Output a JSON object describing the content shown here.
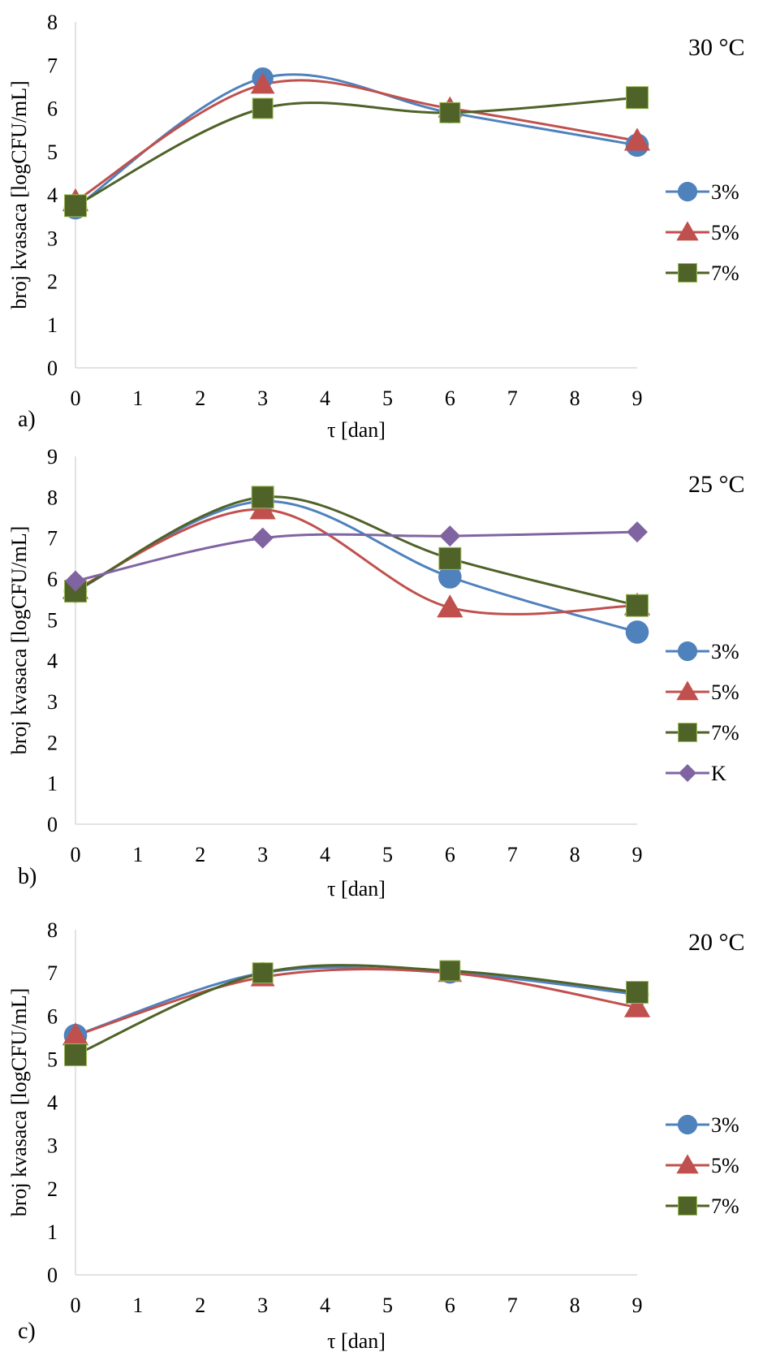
{
  "chart_data": [
    {
      "type": "line",
      "panel_label": "a)",
      "annotation": "30 °C",
      "xlabel": "τ [dan]",
      "ylabel": "broj kvasaca [logCFU/mL]",
      "xlim": [
        0,
        9
      ],
      "ylim": [
        0,
        8
      ],
      "x_ticks": [
        "0",
        "1",
        "2",
        "3",
        "4",
        "5",
        "6",
        "7",
        "8",
        "9"
      ],
      "y_ticks": [
        "0",
        "1",
        "2",
        "3",
        "4",
        "5",
        "6",
        "7",
        "8"
      ],
      "grid": false,
      "legend": "right",
      "series": [
        {
          "name": "3%",
          "marker": "circle",
          "color": "#4F81BD",
          "x": [
            0,
            3,
            6,
            9
          ],
          "y": [
            3.7,
            6.7,
            5.9,
            5.15
          ]
        },
        {
          "name": "5%",
          "marker": "triangle",
          "color": "#C0504D",
          "x": [
            0,
            3,
            6,
            9
          ],
          "y": [
            3.85,
            6.55,
            6.0,
            5.25
          ]
        },
        {
          "name": "7%",
          "marker": "square",
          "color": "#4F6228",
          "x": [
            0,
            3,
            6,
            9
          ],
          "y": [
            3.75,
            6.0,
            5.9,
            6.25
          ]
        }
      ]
    },
    {
      "type": "line",
      "panel_label": "b)",
      "annotation": "25 °C",
      "xlabel": "τ [dan]",
      "ylabel": "broj kvasaca [logCFU/mL]",
      "xlim": [
        0,
        9
      ],
      "ylim": [
        0,
        9
      ],
      "x_ticks": [
        "0",
        "1",
        "2",
        "3",
        "4",
        "5",
        "6",
        "7",
        "8",
        "9"
      ],
      "y_ticks": [
        "0",
        "1",
        "2",
        "3",
        "4",
        "5",
        "6",
        "7",
        "8",
        "9"
      ],
      "grid": false,
      "legend": "right",
      "series": [
        {
          "name": "3%",
          "marker": "circle",
          "color": "#4F81BD",
          "x": [
            0,
            3,
            6,
            9
          ],
          "y": [
            5.7,
            7.9,
            6.05,
            4.7
          ]
        },
        {
          "name": "5%",
          "marker": "triangle",
          "color": "#C0504D",
          "x": [
            0,
            3,
            6,
            9
          ],
          "y": [
            5.75,
            7.7,
            5.3,
            5.35
          ]
        },
        {
          "name": "7%",
          "marker": "square",
          "color": "#4F6228",
          "x": [
            0,
            3,
            6,
            9
          ],
          "y": [
            5.7,
            8.0,
            6.5,
            5.35
          ]
        },
        {
          "name": "K",
          "marker": "diamond",
          "color": "#8064A2",
          "x": [
            0,
            3,
            6,
            9
          ],
          "y": [
            5.95,
            7.0,
            7.05,
            7.15
          ]
        }
      ]
    },
    {
      "type": "line",
      "panel_label": "c)",
      "annotation": "20 °C",
      "xlabel": "τ [dan]",
      "ylabel": "broj kvasaca [logCFU/mL]",
      "xlim": [
        0,
        9
      ],
      "ylim": [
        0,
        8
      ],
      "x_ticks": [
        "0",
        "1",
        "2",
        "3",
        "4",
        "5",
        "6",
        "7",
        "8",
        "9"
      ],
      "y_ticks": [
        "0",
        "1",
        "2",
        "3",
        "4",
        "5",
        "6",
        "7",
        "8"
      ],
      "grid": false,
      "legend": "right",
      "series": [
        {
          "name": "3%",
          "marker": "circle",
          "color": "#4F81BD",
          "x": [
            0,
            3,
            6,
            9
          ],
          "y": [
            5.55,
            7.0,
            7.0,
            6.5
          ]
        },
        {
          "name": "5%",
          "marker": "triangle",
          "color": "#C0504D",
          "x": [
            0,
            3,
            6,
            9
          ],
          "y": [
            5.55,
            6.9,
            7.0,
            6.2
          ]
        },
        {
          "name": "7%",
          "marker": "square",
          "color": "#4F6228",
          "x": [
            0,
            3,
            6,
            9
          ],
          "y": [
            5.1,
            7.0,
            7.05,
            6.55
          ]
        }
      ]
    }
  ]
}
